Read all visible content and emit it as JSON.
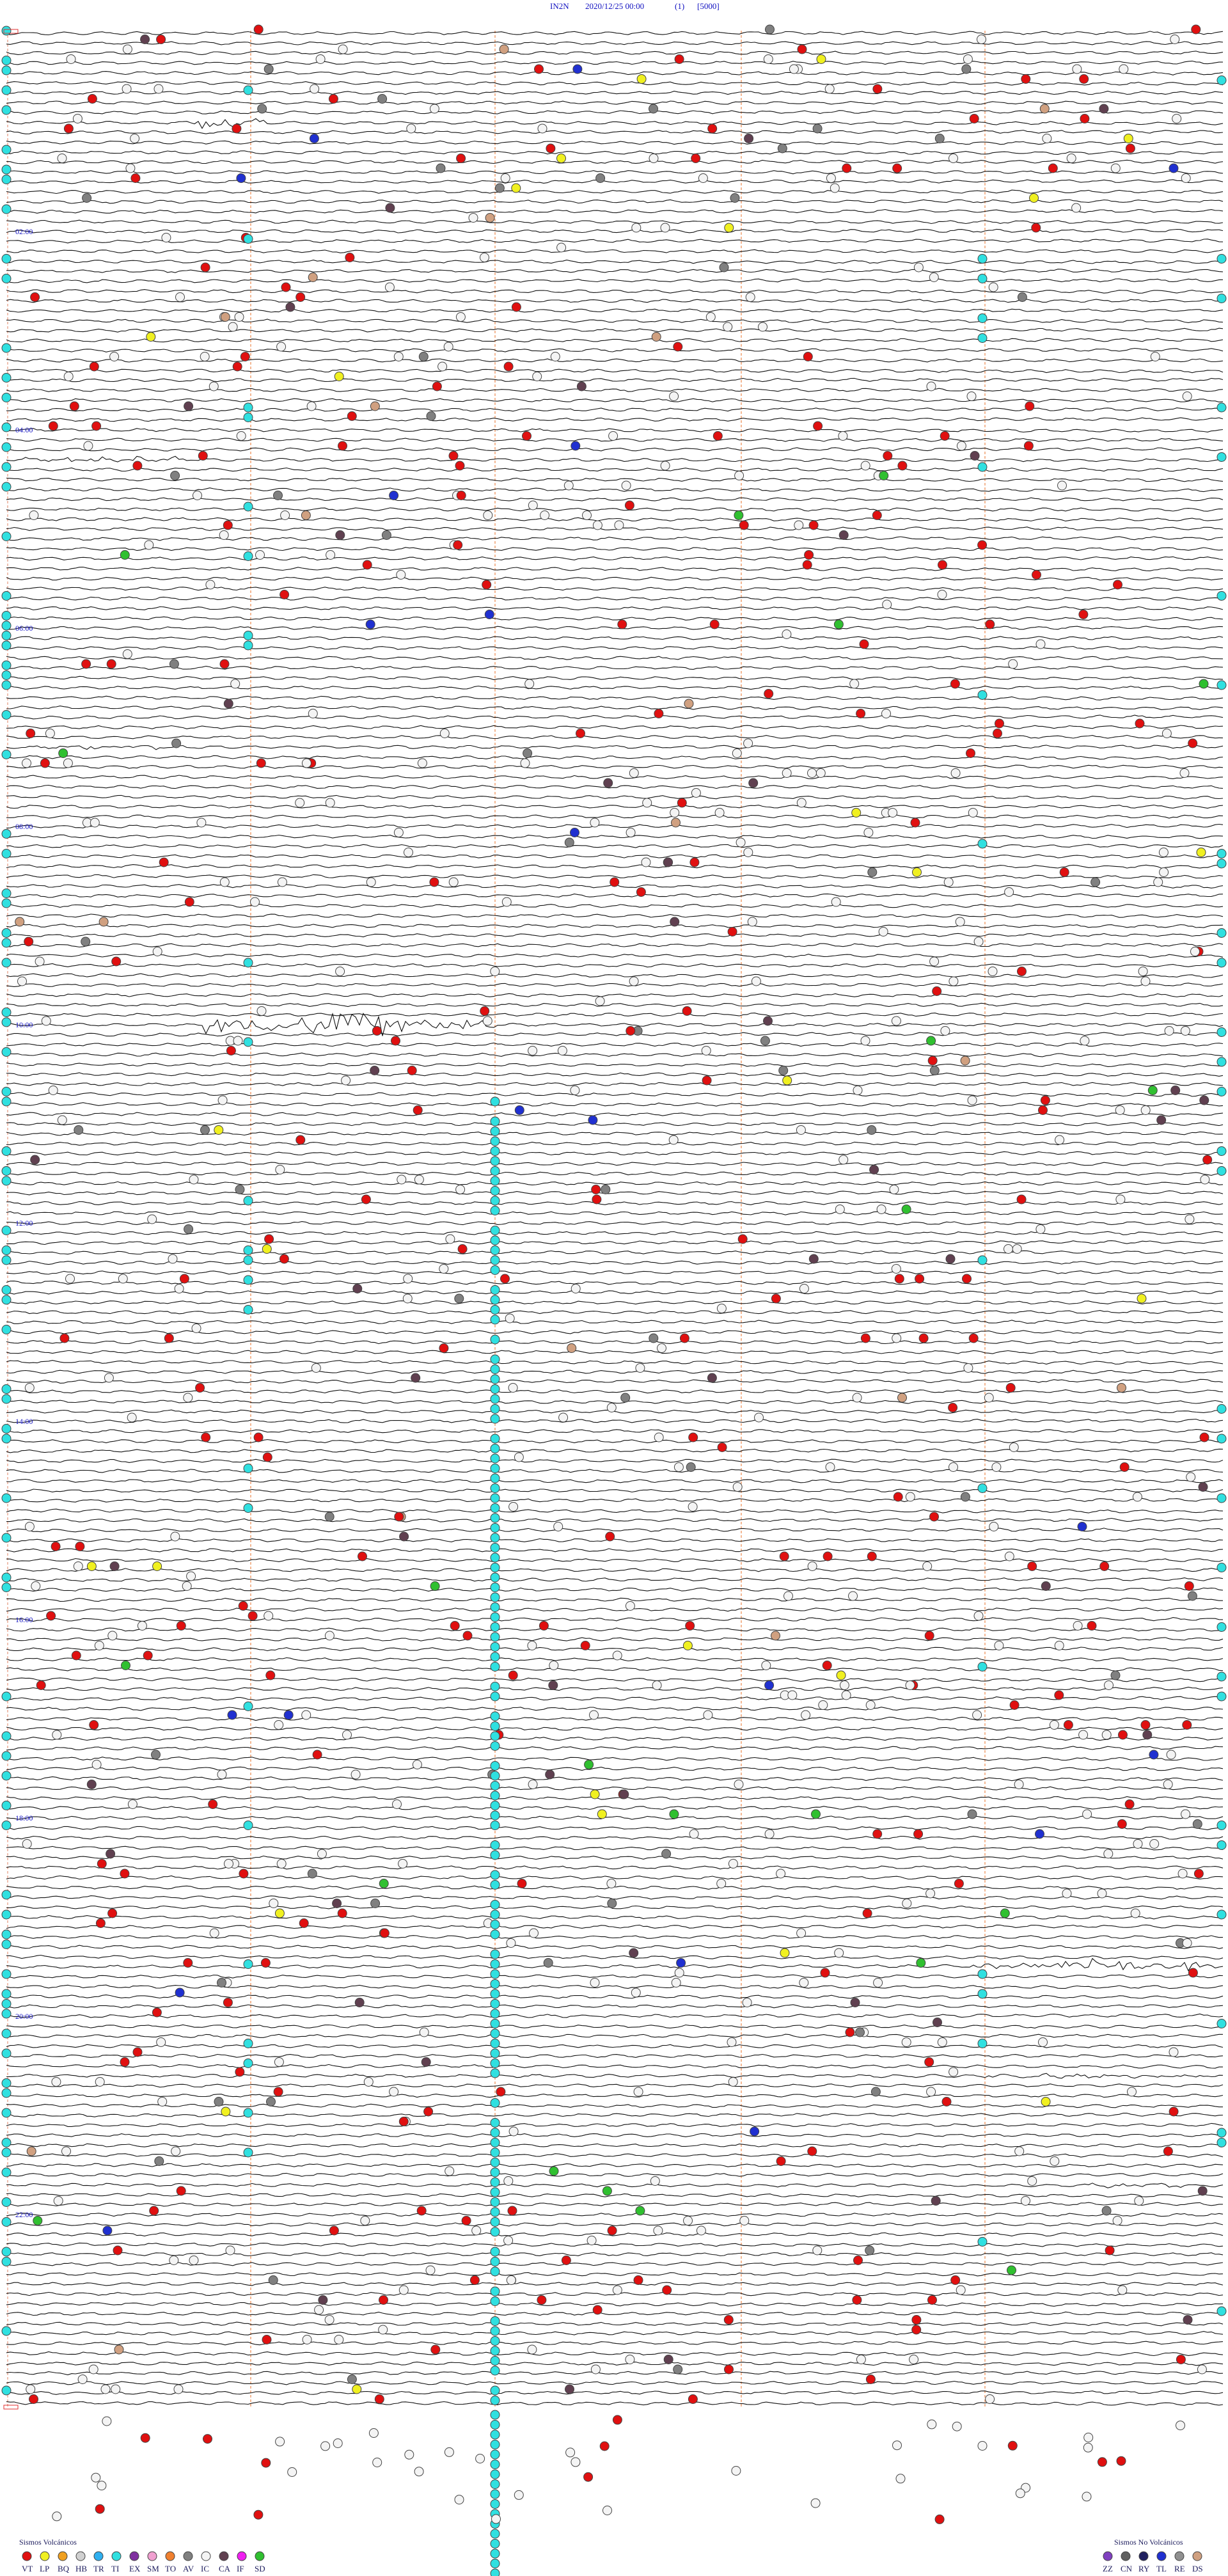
{
  "header": {
    "station": "IN2N",
    "datetime": "2020/12/25 00:00",
    "channel": "(1)",
    "scale": "[5000]"
  },
  "hour_labels": [
    "02:00",
    "04:00",
    "06:00",
    "08:00",
    "10:00",
    "12:00",
    "14:00",
    "16:00",
    "18:00",
    "20:00",
    "22:00"
  ],
  "legend": {
    "volcanic": {
      "title": "Sismos Volcánicos",
      "items": [
        {
          "code": "VT",
          "color": "#e01010"
        },
        {
          "code": "LP",
          "color": "#f0f020"
        },
        {
          "code": "BQ",
          "color": "#f0a020"
        },
        {
          "code": "HB",
          "color": "#d0d0d0"
        },
        {
          "code": "TR",
          "color": "#30b0f0"
        },
        {
          "code": "TI",
          "color": "#30e0e0"
        },
        {
          "code": "EX",
          "color": "#8030a0"
        },
        {
          "code": "SM",
          "color": "#f0a0d0"
        },
        {
          "code": "TO",
          "color": "#f08030"
        },
        {
          "code": "AV",
          "color": "#808080"
        },
        {
          "code": "IC",
          "color": "#f4f4f4"
        },
        {
          "code": "CA",
          "color": "#604050"
        },
        {
          "code": "IF",
          "color": "#f020f0"
        },
        {
          "code": "SD",
          "color": "#30c030"
        }
      ]
    },
    "non_volcanic": {
      "title": "Sismos No Volcánicos",
      "items": [
        {
          "code": "ZZ",
          "color": "#8040c0"
        },
        {
          "code": "CN",
          "color": "#606060"
        },
        {
          "code": "RY",
          "color": "#202060"
        },
        {
          "code": "TL",
          "color": "#2030d0"
        },
        {
          "code": "RE",
          "color": "#909090"
        },
        {
          "code": "DS",
          "color": "#d0a080"
        }
      ]
    }
  }
}
